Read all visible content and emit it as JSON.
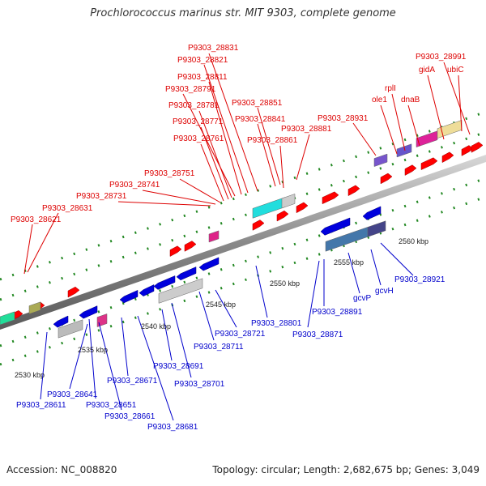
{
  "title": "Prochlorococcus marinus str. MIT 9303, complete genome",
  "footer": {
    "accession": "Accession: NC_008820",
    "topology": "Topology: circular; Length: 2,682,675 bp; Genes: 3,049"
  },
  "colors": {
    "forward_label": "#dd0000",
    "reverse_label": "#0000cc",
    "forward_gene": "#ff0000",
    "reverse_gene": "#0000dd",
    "backbone": "#8a8a8a",
    "tick": "#228822"
  },
  "axis_labels": [
    "2530 kbp",
    "2535 kbp",
    "2540 kbp",
    "2545 kbp",
    "2550 kbp",
    "2555 kbp",
    "2560 kbp"
  ],
  "forward_labels": [
    "P9303_28831",
    "P9303_28821",
    "P9303_28811",
    "P9303_28791",
    "P9303_28781",
    "P9303_28851",
    "P9303_28771",
    "P9303_28841",
    "P9303_28761",
    "P9303_28861",
    "P9303_28881",
    "P9303_28931",
    "P9303_28751",
    "P9303_28741",
    "P9303_28731",
    "P9303_28631",
    "P9303_28621",
    "P9303_28991",
    "gidA",
    "ubiC",
    "rplI",
    "ole1",
    "dnaB"
  ],
  "reverse_labels": [
    "P9303_28921",
    "gcvH",
    "gcvP",
    "P9303_28891",
    "P9303_28871",
    "P9303_28801",
    "P9303_28721",
    "P9303_28711",
    "P9303_28691",
    "P9303_28701",
    "P9303_28671",
    "P9303_28641",
    "P9303_28611",
    "P9303_28651",
    "P9303_28661",
    "P9303_28681"
  ]
}
